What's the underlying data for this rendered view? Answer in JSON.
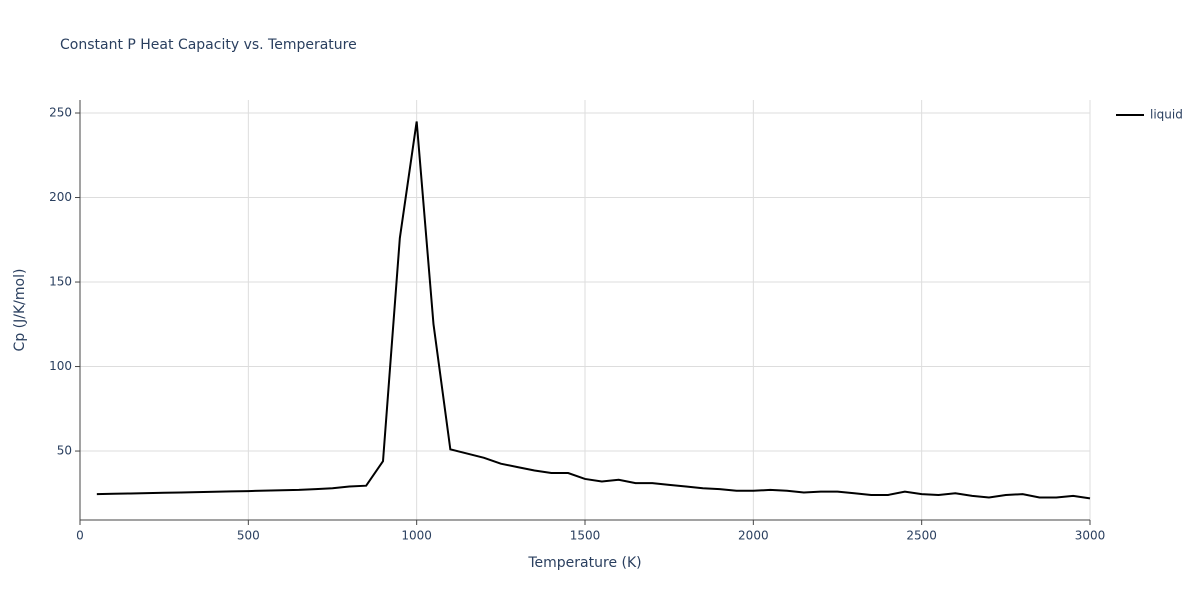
{
  "chart_data": {
    "type": "line",
    "title": "Constant P Heat Capacity vs. Temperature",
    "x_label": "Temperature (K)",
    "y_label": "Cp (J/K/mol)",
    "x": [
      50,
      100,
      150,
      200,
      250,
      300,
      350,
      400,
      450,
      500,
      550,
      600,
      650,
      700,
      750,
      800,
      850,
      900,
      950,
      1000,
      1050,
      1100,
      1150,
      1200,
      1250,
      1300,
      1350,
      1400,
      1450,
      1500,
      1550,
      1600,
      1650,
      1700,
      1750,
      1800,
      1850,
      1900,
      1950,
      2000,
      2050,
      2100,
      2150,
      2200,
      2250,
      2300,
      2350,
      2400,
      2450,
      2500,
      2550,
      2600,
      2650,
      2700,
      2750,
      2800,
      2850,
      2900,
      2950,
      3000
    ],
    "series": [
      {
        "name": "liquid",
        "color": "#000000",
        "values": [
          24.5,
          24.7,
          24.9,
          25.1,
          25.3,
          25.5,
          25.7,
          25.9,
          26.1,
          26.3,
          26.6,
          26.8,
          27,
          27.5,
          28,
          29,
          29.5,
          44,
          176,
          245,
          125,
          51,
          48.5,
          46,
          42.5,
          40.5,
          38.5,
          37,
          37,
          33.5,
          32,
          33,
          31,
          31,
          30,
          29,
          28,
          27.5,
          26.5,
          26.5,
          27,
          26.5,
          25.5,
          26,
          26,
          25,
          24,
          24,
          26,
          24.5,
          24,
          25,
          23.5,
          22.5,
          24,
          24.5,
          22.5,
          22.5,
          23.5,
          22
        ]
      }
    ],
    "xlim": [
      0,
      3000
    ],
    "xticks": [
      0,
      500,
      1000,
      1500,
      2000,
      2500,
      3000
    ],
    "ylim": [
      9.2,
      257.7
    ],
    "yticks": [
      50,
      100,
      150,
      200,
      250
    ],
    "grid": true,
    "legend": "right"
  }
}
